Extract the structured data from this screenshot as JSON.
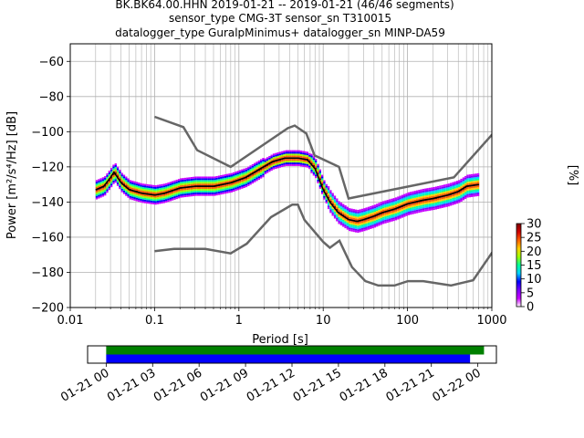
{
  "chart_data": [
    {
      "type": "heatmap",
      "title_lines": [
        "BK.BK64.00.HHN   2019-01-21 -- 2019-01-21  (46/46 segments)",
        "sensor_type CMG-3T sensor_sn T310015",
        "datalogger_type GuralpMinimus+ datalogger_sn MINP-DA59"
      ],
      "xlabel": "Period [s]",
      "ylabel": "Power [m²/s⁴/Hz] [dB]",
      "x_scale": "log",
      "xlim": [
        0.01,
        1000
      ],
      "ylim": [
        -200,
        -50
      ],
      "x_ticks": [
        {
          "v": 0.01,
          "label": "0.01"
        },
        {
          "v": 0.1,
          "label": "0.1"
        },
        {
          "v": 1,
          "label": "1"
        },
        {
          "v": 10,
          "label": "10"
        },
        {
          "v": 100,
          "label": "100"
        },
        {
          "v": 1000,
          "label": "1000"
        }
      ],
      "y_ticks": [
        {
          "v": -60,
          "label": "−60"
        },
        {
          "v": -80,
          "label": "−80"
        },
        {
          "v": -100,
          "label": "−100"
        },
        {
          "v": -120,
          "label": "−120"
        },
        {
          "v": -140,
          "label": "−140"
        },
        {
          "v": -160,
          "label": "−160"
        },
        {
          "v": -180,
          "label": "−180"
        },
        {
          "v": -200,
          "label": "−200"
        }
      ],
      "grid": true,
      "series": [
        {
          "name": "",
          "color": "#666666",
          "x": [
            0.1,
            0.22,
            0.32,
            0.8,
            3.8,
            4.6,
            6.3,
            7.9,
            15.4,
            20,
            354.8,
            10000
          ],
          "y": [
            -91.5,
            -97.4,
            -110.5,
            -120,
            -98,
            -96.5,
            -101,
            -113.5,
            -120,
            -138,
            -126,
            -48
          ]
        },
        {
          "name": "",
          "color": "#666666",
          "x": [
            0.1,
            0.17,
            0.4,
            0.8,
            1.24,
            2.4,
            4.3,
            5,
            6,
            10,
            12,
            15.6,
            21.9,
            31.6,
            45,
            70,
            101,
            154,
            328,
            600,
            10000
          ],
          "y": [
            -168,
            -166.7,
            -166.7,
            -169.2,
            -163.7,
            -148.6,
            -141.5,
            -141.5,
            -150.2,
            -162.7,
            -166,
            -162,
            -177,
            -185,
            -187.5,
            -187.5,
            -185,
            -185,
            -187.5,
            -184.5,
            -99
          ]
        },
        {
          "name": "mode",
          "color": "#000000",
          "x": [
            0.02,
            0.025,
            0.03,
            0.033,
            0.04,
            0.05,
            0.07,
            0.1,
            0.13,
            0.2,
            0.3,
            0.5,
            0.8,
            1.2,
            1.8,
            2.5,
            3.5,
            5,
            6.5,
            8,
            10,
            12,
            15,
            20,
            25,
            30,
            40,
            50,
            70,
            100,
            150,
            200,
            300,
            400,
            500,
            700
          ],
          "y": [
            -133,
            -131,
            -126,
            -123,
            -129,
            -133,
            -135,
            -136,
            -135,
            -132,
            -131,
            -131,
            -129,
            -126,
            -121,
            -117,
            -115,
            -115,
            -116,
            -121,
            -133,
            -140,
            -146,
            -150,
            -151,
            -150,
            -148,
            -146,
            -144,
            -141,
            -139,
            -138,
            -136,
            -134,
            -131,
            -130
          ]
        }
      ],
      "colorbar": {
        "label": "[%]",
        "range": [
          0,
          30
        ],
        "ticks": [
          {
            "v": 0,
            "label": "0"
          },
          {
            "v": 5,
            "label": "5"
          },
          {
            "v": 10,
            "label": "10"
          },
          {
            "v": 15,
            "label": "15"
          },
          {
            "v": 20,
            "label": "20"
          },
          {
            "v": 25,
            "label": "25"
          },
          {
            "v": 30,
            "label": "30"
          }
        ],
        "colors": [
          "#ffffff",
          "#c800ff",
          "#7a00ff",
          "#0000ff",
          "#00d0ff",
          "#00ff9a",
          "#9cff00",
          "#ffd000",
          "#ff6000",
          "#d00000",
          "#7a0000"
        ]
      }
    },
    {
      "type": "timeline",
      "x_ticks": [
        "01-21 00",
        "01-21 03",
        "01-21 06",
        "01-21 09",
        "01-21 12",
        "01-21 15",
        "01-21 18",
        "01-21 21",
        "01-22 00"
      ],
      "xlim_hours": [
        -1.2,
        25.2
      ],
      "bars": [
        {
          "name": "",
          "start_hour": 0,
          "end_hour": 24.4,
          "color": "#008000"
        },
        {
          "name": "",
          "start_hour": 0,
          "end_hour": 23.5,
          "color": "#0000ff"
        }
      ]
    }
  ]
}
